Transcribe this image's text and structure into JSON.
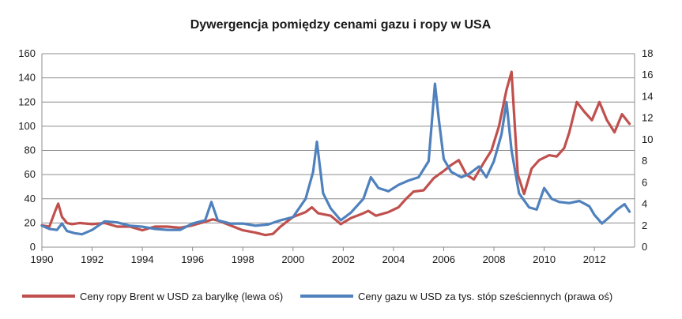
{
  "chart_data": {
    "type": "line",
    "title": "Dywergencja pomiędzy cenami gazu i ropy w USA",
    "x_ticks": [
      "1990",
      "1992",
      "1994",
      "1996",
      "1998",
      "2000",
      "2002",
      "2004",
      "2006",
      "2008",
      "2010",
      "2012"
    ],
    "xlim": [
      1990,
      2013.6
    ],
    "y_left": {
      "ticks": [
        "0",
        "20",
        "40",
        "60",
        "80",
        "100",
        "120",
        "140",
        "160"
      ],
      "ylim": [
        0,
        160
      ]
    },
    "y_right": {
      "ticks": [
        "0",
        "2",
        "4",
        "6",
        "8",
        "10",
        "12",
        "14",
        "16",
        "18"
      ],
      "ylim": [
        0,
        18
      ]
    },
    "grid": "horizontal",
    "legend_position": "bottom",
    "series": [
      {
        "name": "Ceny ropy Brent w USD za barylkę (lewa oś)",
        "color": "#c0504d",
        "axis": "left",
        "x": [
          1990.0,
          1990.3,
          1990.55,
          1990.65,
          1990.8,
          1991.0,
          1991.2,
          1991.5,
          1992.0,
          1992.5,
          1993.0,
          1993.5,
          1994.0,
          1994.5,
          1995.0,
          1995.5,
          1996.0,
          1996.5,
          1996.8,
          1997.0,
          1997.5,
          1998.0,
          1998.5,
          1998.9,
          1999.2,
          1999.5,
          2000.0,
          2000.5,
          2000.75,
          2001.0,
          2001.5,
          2001.9,
          2002.3,
          2002.8,
          2003.0,
          2003.3,
          2003.8,
          2004.2,
          2004.5,
          2004.8,
          2005.2,
          2005.6,
          2006.0,
          2006.3,
          2006.6,
          2006.9,
          2007.2,
          2007.6,
          2007.9,
          2008.2,
          2008.5,
          2008.7,
          2008.95,
          2009.2,
          2009.5,
          2009.8,
          2010.2,
          2010.5,
          2010.8,
          2011.0,
          2011.3,
          2011.6,
          2011.9,
          2012.2,
          2012.5,
          2012.8,
          2013.1,
          2013.4
        ],
        "y": [
          18,
          17,
          31,
          36,
          25,
          20,
          19,
          20,
          19,
          20,
          17,
          17,
          14,
          17,
          17,
          16,
          18,
          21,
          23,
          22,
          18,
          14,
          12,
          10,
          11,
          17,
          25,
          29,
          33,
          28,
          26,
          19,
          24,
          28,
          30,
          26,
          29,
          33,
          40,
          46,
          47,
          57,
          63,
          68,
          72,
          60,
          56,
          70,
          80,
          100,
          130,
          145,
          60,
          44,
          65,
          72,
          76,
          75,
          82,
          95,
          120,
          112,
          105,
          120,
          105,
          95,
          110,
          102
        ]
      },
      {
        "name": "Ceny gazu w USD za tys. stóp sześciennych (prawa oś)",
        "color": "#4f81bd",
        "axis": "right",
        "x": [
          1990.0,
          1990.3,
          1990.6,
          1990.8,
          1991.0,
          1991.3,
          1991.6,
          1992.0,
          1992.5,
          1993.0,
          1993.5,
          1994.0,
          1994.5,
          1995.0,
          1995.5,
          1996.0,
          1996.5,
          1996.75,
          1997.0,
          1997.5,
          1998.0,
          1998.5,
          1999.0,
          1999.5,
          2000.0,
          2000.5,
          2000.8,
          2000.95,
          2001.2,
          2001.5,
          2001.9,
          2002.3,
          2002.8,
          2003.1,
          2003.4,
          2003.8,
          2004.2,
          2004.6,
          2005.0,
          2005.4,
          2005.65,
          2005.8,
          2006.0,
          2006.3,
          2006.7,
          2007.0,
          2007.4,
          2007.7,
          2008.0,
          2008.3,
          2008.5,
          2008.7,
          2009.0,
          2009.4,
          2009.7,
          2010.0,
          2010.3,
          2010.6,
          2011.0,
          2011.4,
          2011.8,
          2012.0,
          2012.3,
          2012.6,
          2012.9,
          2013.2,
          2013.4
        ],
        "y": [
          2.0,
          1.7,
          1.6,
          2.2,
          1.5,
          1.3,
          1.2,
          1.6,
          2.4,
          2.3,
          2.0,
          1.9,
          1.7,
          1.6,
          1.6,
          2.2,
          2.5,
          4.2,
          2.5,
          2.2,
          2.2,
          2.0,
          2.1,
          2.5,
          2.8,
          4.5,
          7.0,
          9.8,
          5.0,
          3.6,
          2.5,
          3.2,
          4.5,
          6.5,
          5.5,
          5.2,
          5.8,
          6.2,
          6.5,
          8.0,
          15.2,
          12.0,
          8.2,
          7.0,
          6.5,
          6.8,
          7.5,
          6.5,
          8.0,
          10.5,
          13.5,
          9.0,
          5.0,
          3.7,
          3.5,
          5.5,
          4.5,
          4.2,
          4.1,
          4.3,
          3.8,
          3.0,
          2.2,
          2.8,
          3.5,
          4.0,
          3.3
        ]
      }
    ]
  }
}
